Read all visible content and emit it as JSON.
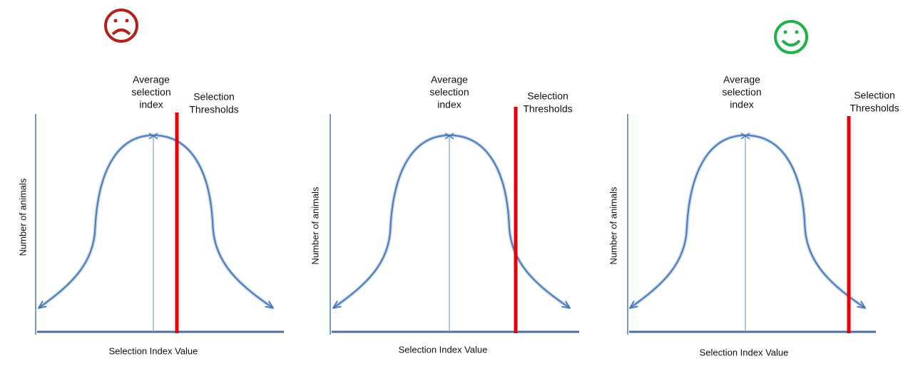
{
  "panels": [
    {
      "avg_label": [
        "Average",
        "selection",
        "index"
      ],
      "threshold_label": [
        "Selection",
        "Thresholds"
      ],
      "y_label": "Number of animals",
      "x_label": "Selection Index Value"
    },
    {
      "avg_label": [
        "Average",
        "selection",
        "index"
      ],
      "threshold_label": [
        "Selection",
        "Thresholds"
      ],
      "y_label": "Number of animals",
      "x_label": "Selection Index Value"
    },
    {
      "avg_label": [
        "Average",
        "selection",
        "index"
      ],
      "threshold_label": [
        "Selection",
        "Thresholds"
      ],
      "y_label": "Number of animals",
      "x_label": "Selection Index Value"
    }
  ]
}
